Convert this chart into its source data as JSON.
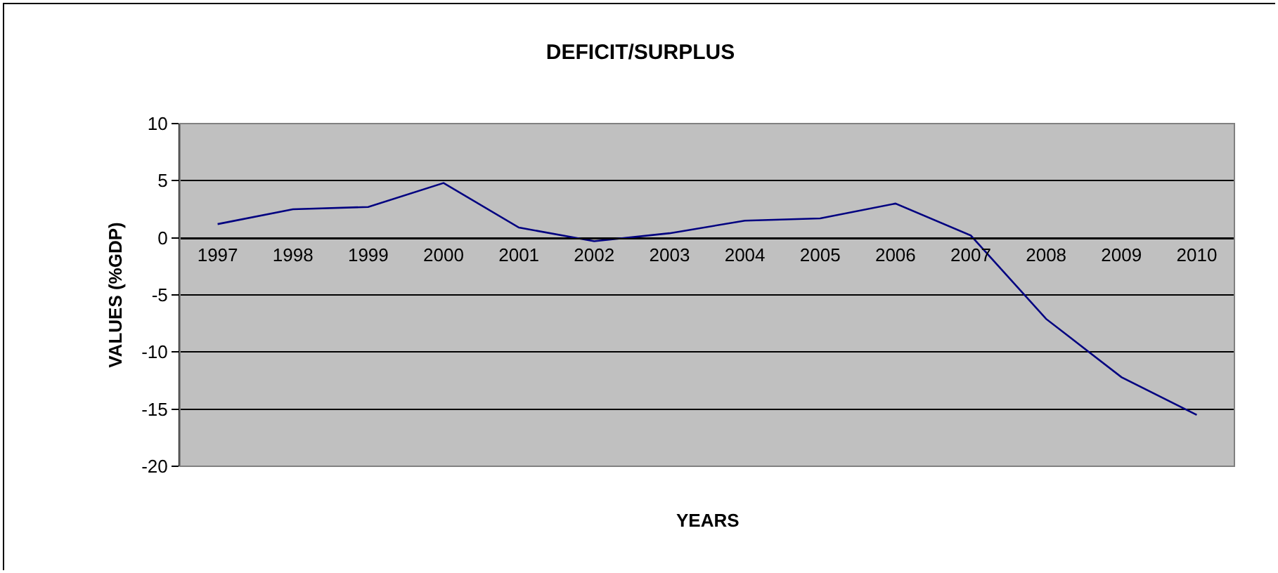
{
  "chart_data": {
    "type": "line",
    "title": "DEFICIT/SURPLUS",
    "xlabel": "YEARS",
    "ylabel": "VALUES (%GDP)",
    "categories": [
      "1997",
      "1998",
      "1999",
      "2000",
      "2001",
      "2002",
      "2003",
      "2004",
      "2005",
      "2006",
      "2007",
      "2008",
      "2009",
      "2010"
    ],
    "series": [
      {
        "color": "#000080",
        "values": [
          1.2,
          2.5,
          2.7,
          4.8,
          0.9,
          -0.3,
          0.4,
          1.5,
          1.7,
          3.0,
          0.2,
          -7.1,
          -12.2,
          -15.5
        ]
      }
    ],
    "ylim": [
      -20,
      10
    ],
    "yticks": [
      -20,
      -15,
      -10,
      -5,
      0,
      5,
      10
    ],
    "grid": "y",
    "legend": false
  }
}
